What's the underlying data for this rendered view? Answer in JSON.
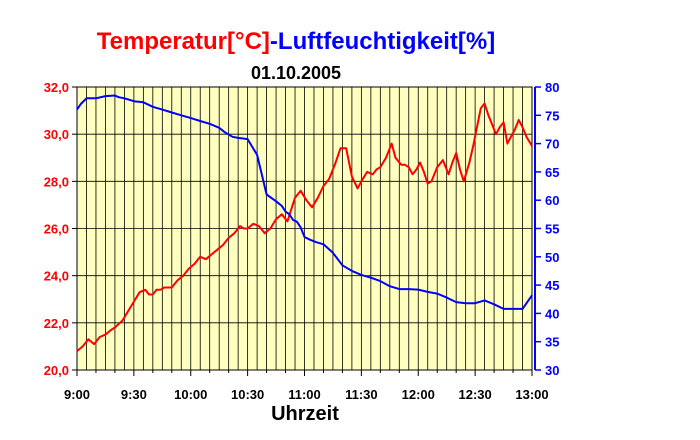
{
  "chart_data": {
    "type": "line",
    "title": {
      "part1": "Temperatur[°C]",
      "separator": "-",
      "part2": "Luftfeuchtigkeit[%]",
      "date": "01.10.2005"
    },
    "xlabel": "Uhrzeit",
    "x_ticks": [
      "9:00",
      "9:30",
      "10:00",
      "10:30",
      "11:00",
      "11:30",
      "12:00",
      "12:30",
      "13:00"
    ],
    "x_range_minutes": [
      0,
      240
    ],
    "left_axis": {
      "ticks": [
        "20,0",
        "22,0",
        "24,0",
        "26,0",
        "28,0",
        "30,0",
        "32,0"
      ],
      "range": [
        20,
        32
      ],
      "color": "#ff0000"
    },
    "right_axis": {
      "ticks": [
        "30",
        "35",
        "40",
        "45",
        "50",
        "55",
        "60",
        "65",
        "70",
        "75",
        "80"
      ],
      "range": [
        30,
        80
      ],
      "color": "#0000ff"
    },
    "plot_background": "#ffffc0",
    "grid": true,
    "series": [
      {
        "axis": "left",
        "color": "#ff0000",
        "x": [
          0,
          3,
          6,
          9,
          12,
          15,
          18,
          20,
          24,
          27,
          30,
          33,
          36,
          38,
          40,
          42,
          44,
          46,
          48,
          50,
          53,
          56,
          59,
          62,
          65,
          68,
          71,
          74,
          77,
          80,
          83,
          86,
          88,
          90,
          93,
          96,
          99,
          102,
          105,
          108,
          111,
          113,
          115,
          118,
          121,
          124,
          127,
          130,
          133,
          136,
          139,
          142,
          145,
          148,
          150,
          153,
          156,
          158,
          160,
          163,
          166,
          168,
          171,
          173,
          175,
          177,
          179,
          181,
          183,
          185,
          187,
          190,
          193,
          196,
          198,
          200,
          202,
          204,
          207,
          209,
          211,
          213,
          215,
          217,
          219,
          221,
          223,
          225,
          227,
          229,
          231,
          233,
          235,
          237,
          240
        ],
        "values": [
          20.8,
          21.0,
          21.3,
          21.1,
          21.4,
          21.5,
          21.7,
          21.8,
          22.1,
          22.5,
          22.9,
          23.3,
          23.4,
          23.2,
          23.2,
          23.4,
          23.4,
          23.5,
          23.5,
          23.5,
          23.8,
          24.0,
          24.3,
          24.5,
          24.8,
          24.7,
          24.9,
          25.1,
          25.3,
          25.6,
          25.8,
          26.1,
          26.0,
          26.0,
          26.2,
          26.1,
          25.8,
          26.0,
          26.4,
          26.6,
          26.3,
          26.8,
          27.3,
          27.6,
          27.2,
          26.9,
          27.3,
          27.8,
          28.1,
          28.7,
          29.4,
          29.4,
          28.2,
          27.7,
          28.0,
          28.4,
          28.3,
          28.5,
          28.6,
          29.0,
          29.6,
          29.0,
          28.7,
          28.7,
          28.6,
          28.3,
          28.5,
          28.8,
          28.4,
          27.9,
          28.0,
          28.6,
          28.9,
          28.3,
          28.8,
          29.2,
          28.5,
          28.0,
          28.8,
          29.5,
          30.3,
          31.1,
          31.3,
          30.8,
          30.4,
          30.0,
          30.3,
          30.5,
          29.6,
          29.9,
          30.2,
          30.6,
          30.3,
          29.9,
          29.5
        ],
        "name": ""
      },
      {
        "axis": "right",
        "color": "#0000ff",
        "x": [
          0,
          2,
          5,
          10,
          15,
          20,
          22,
          25,
          30,
          35,
          40,
          45,
          50,
          55,
          60,
          65,
          70,
          75,
          78,
          82,
          85,
          90,
          95,
          100,
          105,
          108,
          110,
          112,
          114,
          116,
          118,
          120,
          123,
          126,
          130,
          135,
          140,
          145,
          150,
          155,
          160,
          165,
          170,
          175,
          180,
          185,
          190,
          195,
          200,
          205,
          210,
          215,
          220,
          225,
          230,
          235,
          240
        ],
        "values": [
          76.0,
          77.0,
          78.0,
          78.0,
          78.4,
          78.5,
          78.2,
          78.0,
          77.5,
          77.3,
          76.5,
          76.0,
          75.5,
          75.0,
          74.5,
          74.0,
          73.5,
          72.8,
          72.0,
          71.2,
          71.0,
          70.8,
          68.0,
          61.0,
          59.8,
          59.0,
          58.0,
          57.5,
          56.5,
          56.2,
          55.2,
          53.5,
          53.0,
          52.6,
          52.2,
          50.7,
          48.5,
          47.5,
          46.8,
          46.3,
          45.7,
          44.8,
          44.3,
          44.3,
          44.2,
          43.8,
          43.5,
          42.8,
          42.0,
          41.8,
          41.8,
          42.3,
          41.6,
          40.8,
          40.8,
          40.8,
          43.2
        ],
        "name": ""
      }
    ]
  }
}
